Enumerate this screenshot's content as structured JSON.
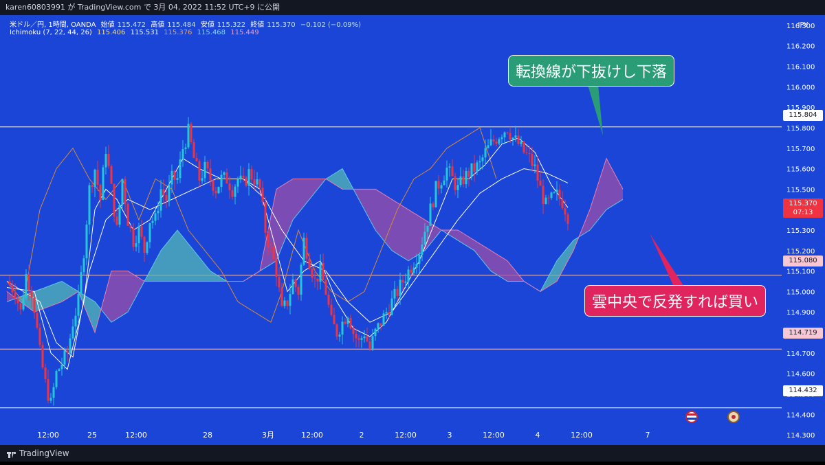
{
  "header": {
    "publish_line": "karen60803991 が TradingView.com で 3月 04, 2022 11:52 UTC+9 に公開"
  },
  "legend": {
    "line1": {
      "symbol": "米ドル／円, 1時間, OANDA",
      "open_label": "始値",
      "open": "115.472",
      "high_label": "高値",
      "high": "115.484",
      "low_label": "安値",
      "low": "115.322",
      "close_label": "終値",
      "close": "115.370",
      "change": "−0.102 (−0.09%)"
    },
    "line2": {
      "name": "Ichimoku (7, 22, 44, 26)",
      "v1": "115.406",
      "v2": "115.531",
      "v3": "115.376",
      "v4": "115.468",
      "v5": "115.449"
    }
  },
  "colors": {
    "background": "#1a45d6",
    "tenkan": "#ffffff",
    "kijun": "#ffffff",
    "chikou": "#d68a3c",
    "span_a": "#5fc8e8",
    "span_b": "#e87fb0",
    "cloud_bull": "#54b8b4",
    "cloud_bear": "#9c4fa8",
    "up_candle": "#26c6da",
    "down_candle": "#ef3340"
  },
  "annotations": {
    "callout_top": "転換線が下抜けし下落",
    "callout_bottom": "雲中央で反発すれば買い"
  },
  "price_tags": {
    "currency": "JPY",
    "current_price": "115.370",
    "countdown": "07:13",
    "h1": "115.804",
    "h2": "115.080",
    "h3": "114.719",
    "h4": "114.432"
  },
  "footer": {
    "brand": "TradingView"
  },
  "chart_data": {
    "type": "candlestick",
    "timeframe": "1時間",
    "y_axis": {
      "ylim": [
        114.25,
        116.35
      ],
      "ticks": [
        "116.300",
        "116.200",
        "116.100",
        "116.000",
        "115.900",
        "115.800",
        "115.700",
        "115.600",
        "115.500",
        "115.400",
        "115.300",
        "115.200",
        "115.100",
        "115.000",
        "114.900",
        "114.800",
        "114.700",
        "114.600",
        "114.500",
        "114.400",
        "114.300"
      ]
    },
    "x_axis": {
      "labels": [
        {
          "label": "12:00",
          "bar": 15
        },
        {
          "label": "25",
          "bar": 31
        },
        {
          "label": "12:00",
          "bar": 47
        },
        {
          "label": "28",
          "bar": 73
        },
        {
          "label": "3月",
          "bar": 95
        },
        {
          "label": "12:00",
          "bar": 111
        },
        {
          "label": "2",
          "bar": 129
        },
        {
          "label": "12:00",
          "bar": 145
        },
        {
          "label": "3",
          "bar": 161
        },
        {
          "label": "12:00",
          "bar": 177
        },
        {
          "label": "4",
          "bar": 193
        },
        {
          "label": "12:00",
          "bar": 209
        },
        {
          "label": "7",
          "bar": 233
        }
      ]
    },
    "horizontal_lines": [
      115.804,
      115.08,
      114.719,
      114.432
    ],
    "close_anchors": [
      [
        0,
        115.05
      ],
      [
        3,
        115.0
      ],
      [
        5,
        114.9
      ],
      [
        7,
        115.08
      ],
      [
        9,
        115.0
      ],
      [
        10,
        114.92
      ],
      [
        12,
        114.7
      ],
      [
        14,
        114.55
      ],
      [
        16,
        114.45
      ],
      [
        18,
        114.6
      ],
      [
        20,
        114.65
      ],
      [
        22,
        114.7
      ],
      [
        24,
        114.85
      ],
      [
        26,
        114.95
      ],
      [
        28,
        115.2
      ],
      [
        30,
        115.5
      ],
      [
        32,
        115.6
      ],
      [
        34,
        115.45
      ],
      [
        36,
        115.7
      ],
      [
        38,
        115.5
      ],
      [
        40,
        115.3
      ],
      [
        42,
        115.55
      ],
      [
        44,
        115.35
      ],
      [
        46,
        115.25
      ],
      [
        48,
        115.3
      ],
      [
        50,
        115.2
      ],
      [
        52,
        115.35
      ],
      [
        54,
        115.35
      ],
      [
        56,
        115.5
      ],
      [
        58,
        115.45
      ],
      [
        60,
        115.55
      ],
      [
        62,
        115.55
      ],
      [
        64,
        115.7
      ],
      [
        66,
        115.78
      ],
      [
        68,
        115.65
      ],
      [
        70,
        115.55
      ],
      [
        72,
        115.6
      ],
      [
        74,
        115.55
      ],
      [
        76,
        115.5
      ],
      [
        78,
        115.55
      ],
      [
        80,
        115.55
      ],
      [
        82,
        115.5
      ],
      [
        84,
        115.55
      ],
      [
        86,
        115.52
      ],
      [
        88,
        115.58
      ],
      [
        90,
        115.55
      ],
      [
        92,
        115.5
      ],
      [
        94,
        115.3
      ],
      [
        96,
        115.2
      ],
      [
        98,
        115.1
      ],
      [
        100,
        114.9
      ],
      [
        102,
        114.95
      ],
      [
        104,
        115.05
      ],
      [
        106,
        115.0
      ],
      [
        108,
        115.25
      ],
      [
        110,
        115.15
      ],
      [
        112,
        115.05
      ],
      [
        114,
        115.1
      ],
      [
        116,
        115.0
      ],
      [
        118,
        114.85
      ],
      [
        120,
        114.8
      ],
      [
        122,
        114.85
      ],
      [
        124,
        114.9
      ],
      [
        126,
        114.8
      ],
      [
        128,
        114.75
      ],
      [
        130,
        114.8
      ],
      [
        132,
        114.72
      ],
      [
        134,
        114.8
      ],
      [
        136,
        114.85
      ],
      [
        138,
        114.9
      ],
      [
        140,
        114.95
      ],
      [
        142,
        115.0
      ],
      [
        144,
        115.05
      ],
      [
        146,
        115.1
      ],
      [
        148,
        115.15
      ],
      [
        150,
        115.2
      ],
      [
        152,
        115.3
      ],
      [
        154,
        115.4
      ],
      [
        156,
        115.5
      ],
      [
        158,
        115.55
      ],
      [
        160,
        115.6
      ],
      [
        162,
        115.55
      ],
      [
        164,
        115.5
      ],
      [
        166,
        115.55
      ],
      [
        168,
        115.58
      ],
      [
        170,
        115.6
      ],
      [
        172,
        115.62
      ],
      [
        174,
        115.68
      ],
      [
        176,
        115.72
      ],
      [
        178,
        115.75
      ],
      [
        180,
        115.78
      ],
      [
        182,
        115.8
      ],
      [
        184,
        115.75
      ],
      [
        186,
        115.72
      ],
      [
        188,
        115.68
      ],
      [
        190,
        115.65
      ],
      [
        192,
        115.6
      ],
      [
        194,
        115.5
      ],
      [
        196,
        115.42
      ],
      [
        198,
        115.45
      ],
      [
        200,
        115.47
      ],
      [
        202,
        115.44
      ],
      [
        204,
        115.37
      ]
    ],
    "ichimoku": {
      "tenkan_anchors": [
        [
          0,
          115.02
        ],
        [
          10,
          115.0
        ],
        [
          16,
          114.7
        ],
        [
          22,
          114.62
        ],
        [
          28,
          114.95
        ],
        [
          32,
          115.4
        ],
        [
          36,
          115.5
        ],
        [
          40,
          115.45
        ],
        [
          46,
          115.3
        ],
        [
          52,
          115.35
        ],
        [
          58,
          115.5
        ],
        [
          64,
          115.65
        ],
        [
          70,
          115.6
        ],
        [
          78,
          115.55
        ],
        [
          86,
          115.55
        ],
        [
          92,
          115.5
        ],
        [
          96,
          115.3
        ],
        [
          102,
          115.0
        ],
        [
          108,
          115.1
        ],
        [
          114,
          115.15
        ],
        [
          120,
          114.95
        ],
        [
          126,
          114.82
        ],
        [
          132,
          114.78
        ],
        [
          138,
          114.85
        ],
        [
          144,
          115.0
        ],
        [
          150,
          115.15
        ],
        [
          156,
          115.35
        ],
        [
          162,
          115.55
        ],
        [
          168,
          115.55
        ],
        [
          174,
          115.62
        ],
        [
          180,
          115.72
        ],
        [
          186,
          115.75
        ],
        [
          192,
          115.68
        ],
        [
          198,
          115.52
        ],
        [
          204,
          115.41
        ]
      ],
      "kijun_anchors": [
        [
          0,
          115.05
        ],
        [
          12,
          114.95
        ],
        [
          18,
          114.75
        ],
        [
          24,
          114.68
        ],
        [
          30,
          115.1
        ],
        [
          36,
          115.35
        ],
        [
          44,
          115.45
        ],
        [
          52,
          115.4
        ],
        [
          60,
          115.45
        ],
        [
          68,
          115.5
        ],
        [
          76,
          115.55
        ],
        [
          86,
          115.55
        ],
        [
          94,
          115.45
        ],
        [
          100,
          115.3
        ],
        [
          108,
          115.15
        ],
        [
          116,
          115.1
        ],
        [
          124,
          114.95
        ],
        [
          132,
          114.85
        ],
        [
          140,
          114.9
        ],
        [
          148,
          115.05
        ],
        [
          156,
          115.2
        ],
        [
          164,
          115.35
        ],
        [
          172,
          115.48
        ],
        [
          180,
          115.55
        ],
        [
          188,
          115.6
        ],
        [
          196,
          115.58
        ],
        [
          204,
          115.53
        ]
      ],
      "chikou_anchors": [
        [
          0,
          115.05
        ],
        [
          6,
          114.95
        ],
        [
          12,
          115.4
        ],
        [
          18,
          115.6
        ],
        [
          24,
          115.7
        ],
        [
          30,
          115.55
        ],
        [
          36,
          115.45
        ],
        [
          42,
          115.55
        ],
        [
          48,
          115.35
        ],
        [
          54,
          115.55
        ],
        [
          60,
          115.5
        ],
        [
          66,
          115.3
        ],
        [
          72,
          115.2
        ],
        [
          78,
          115.1
        ],
        [
          84,
          114.95
        ],
        [
          90,
          114.9
        ],
        [
          96,
          114.85
        ],
        [
          100,
          115.0
        ],
        [
          106,
          115.3
        ],
        [
          112,
          115.1
        ],
        [
          118,
          115.0
        ],
        [
          124,
          114.95
        ],
        [
          130,
          115.0
        ],
        [
          136,
          115.2
        ],
        [
          142,
          115.4
        ],
        [
          148,
          115.55
        ],
        [
          154,
          115.6
        ],
        [
          160,
          115.7
        ],
        [
          166,
          115.75
        ],
        [
          172,
          115.8
        ],
        [
          178,
          115.55
        ]
      ],
      "span_a_anchors": [
        [
          0,
          114.95
        ],
        [
          10,
          115.0
        ],
        [
          20,
          115.05
        ],
        [
          26,
          115.0
        ],
        [
          32,
          114.95
        ],
        [
          38,
          114.85
        ],
        [
          44,
          114.9
        ],
        [
          50,
          115.05
        ],
        [
          56,
          115.2
        ],
        [
          62,
          115.3
        ],
        [
          68,
          115.2
        ],
        [
          74,
          115.1
        ],
        [
          80,
          115.05
        ],
        [
          86,
          115.05
        ],
        [
          92,
          115.1
        ],
        [
          98,
          115.15
        ],
        [
          104,
          115.35
        ],
        [
          110,
          115.45
        ],
        [
          116,
          115.55
        ],
        [
          122,
          115.6
        ],
        [
          128,
          115.45
        ],
        [
          134,
          115.3
        ],
        [
          140,
          115.2
        ],
        [
          146,
          115.15
        ],
        [
          152,
          115.2
        ],
        [
          158,
          115.3
        ],
        [
          164,
          115.25
        ],
        [
          170,
          115.2
        ],
        [
          176,
          115.1
        ],
        [
          182,
          115.05
        ],
        [
          188,
          115.05
        ],
        [
          194,
          115.0
        ],
        [
          200,
          115.15
        ],
        [
          206,
          115.25
        ],
        [
          212,
          115.3
        ],
        [
          218,
          115.4
        ],
        [
          224,
          115.45
        ]
      ],
      "span_b_anchors": [
        [
          0,
          115.0
        ],
        [
          10,
          114.9
        ],
        [
          20,
          114.95
        ],
        [
          26,
          115.0
        ],
        [
          32,
          114.8
        ],
        [
          38,
          115.1
        ],
        [
          44,
          115.1
        ],
        [
          50,
          115.05
        ],
        [
          56,
          115.05
        ],
        [
          62,
          115.05
        ],
        [
          68,
          115.05
        ],
        [
          74,
          115.05
        ],
        [
          80,
          115.05
        ],
        [
          86,
          115.05
        ],
        [
          92,
          115.1
        ],
        [
          98,
          115.5
        ],
        [
          104,
          115.55
        ],
        [
          110,
          115.55
        ],
        [
          116,
          115.55
        ],
        [
          122,
          115.5
        ],
        [
          128,
          115.5
        ],
        [
          134,
          115.5
        ],
        [
          140,
          115.45
        ],
        [
          146,
          115.4
        ],
        [
          152,
          115.35
        ],
        [
          158,
          115.3
        ],
        [
          164,
          115.3
        ],
        [
          170,
          115.25
        ],
        [
          176,
          115.2
        ],
        [
          182,
          115.15
        ],
        [
          188,
          115.05
        ],
        [
          194,
          115.0
        ],
        [
          200,
          115.05
        ],
        [
          206,
          115.2
        ],
        [
          212,
          115.4
        ],
        [
          218,
          115.65
        ],
        [
          224,
          115.5
        ]
      ]
    }
  }
}
